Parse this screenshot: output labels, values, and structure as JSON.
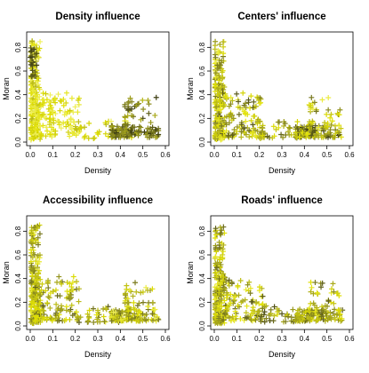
{
  "chart_data": [
    {
      "type": "scatter",
      "title": "Density influence",
      "xlabel": "Density",
      "ylabel": "Moran",
      "xlim": [
        0,
        0.6
      ],
      "ylim": [
        0,
        0.9
      ],
      "xticks": [
        0.0,
        0.1,
        0.2,
        0.3,
        0.4,
        0.5,
        0.6
      ],
      "yticks": [
        0.0,
        0.2,
        0.4,
        0.6,
        0.8
      ],
      "marker": "+",
      "grid": false,
      "legend": "none",
      "color_scale": [
        "#3a3a12",
        "#808020",
        "#b8b81a",
        "#e0e000",
        "#f0f060"
      ],
      "seed": 11,
      "clusters": [
        {
          "x": [
            0.003,
            0.045
          ],
          "y": [
            0.02,
            0.86
          ],
          "count": 170,
          "shade": [
            0.45,
            1.0
          ]
        },
        {
          "x": [
            0.02,
            0.22
          ],
          "y": [
            0.04,
            0.42
          ],
          "count": 140,
          "shade": [
            0.6,
            1.0
          ]
        },
        {
          "x": [
            0.2,
            0.45
          ],
          "y": [
            0.03,
            0.18
          ],
          "count": 45,
          "shade": [
            0.5,
            1.0
          ]
        },
        {
          "x": [
            0.36,
            0.57
          ],
          "y": [
            0.04,
            0.14
          ],
          "count": 120,
          "shade": [
            0.0,
            0.5
          ]
        },
        {
          "x": [
            0.42,
            0.56
          ],
          "y": [
            0.12,
            0.38
          ],
          "count": 40,
          "shade": [
            0.0,
            0.5
          ]
        },
        {
          "x": [
            0.0,
            0.03
          ],
          "y": [
            0.55,
            0.8
          ],
          "count": 25,
          "shade": [
            0.0,
            0.3
          ]
        }
      ]
    },
    {
      "type": "scatter",
      "title": "Centers' influence",
      "xlabel": "Density",
      "ylabel": "Moran",
      "xlim": [
        0,
        0.6
      ],
      "ylim": [
        0,
        0.9
      ],
      "xticks": [
        0.0,
        0.1,
        0.2,
        0.3,
        0.4,
        0.5,
        0.6
      ],
      "yticks": [
        0.0,
        0.2,
        0.4,
        0.6,
        0.8
      ],
      "marker": "+",
      "grid": false,
      "legend": "none",
      "color_scale": [
        "#3a3a12",
        "#808020",
        "#b8b81a",
        "#e0e000",
        "#f0f060"
      ],
      "seed": 23,
      "clusters": [
        {
          "x": [
            0.003,
            0.045
          ],
          "y": [
            0.02,
            0.86
          ],
          "count": 170,
          "shade": [
            0.2,
            1.0
          ]
        },
        {
          "x": [
            0.02,
            0.22
          ],
          "y": [
            0.04,
            0.42
          ],
          "count": 140,
          "shade": [
            0.1,
            0.9
          ]
        },
        {
          "x": [
            0.2,
            0.45
          ],
          "y": [
            0.03,
            0.18
          ],
          "count": 45,
          "shade": [
            0.1,
            0.8
          ]
        },
        {
          "x": [
            0.36,
            0.57
          ],
          "y": [
            0.04,
            0.14
          ],
          "count": 120,
          "shade": [
            0.0,
            0.8
          ]
        },
        {
          "x": [
            0.42,
            0.56
          ],
          "y": [
            0.12,
            0.38
          ],
          "count": 40,
          "shade": [
            0.2,
            1.0
          ]
        }
      ]
    },
    {
      "type": "scatter",
      "title": "Accessibility influence",
      "xlabel": "Density",
      "ylabel": "Moran",
      "xlim": [
        0,
        0.6
      ],
      "ylim": [
        0,
        0.9
      ],
      "xticks": [
        0.0,
        0.1,
        0.2,
        0.3,
        0.4,
        0.5,
        0.6
      ],
      "yticks": [
        0.0,
        0.2,
        0.4,
        0.6,
        0.8
      ],
      "marker": "+",
      "grid": false,
      "legend": "none",
      "color_scale": [
        "#3a3a12",
        "#808020",
        "#b8b81a",
        "#e0e000",
        "#f0f060"
      ],
      "seed": 37,
      "clusters": [
        {
          "x": [
            0.003,
            0.045
          ],
          "y": [
            0.02,
            0.86
          ],
          "count": 170,
          "shade": [
            0.2,
            0.9
          ]
        },
        {
          "x": [
            0.02,
            0.22
          ],
          "y": [
            0.04,
            0.42
          ],
          "count": 140,
          "shade": [
            0.1,
            0.8
          ]
        },
        {
          "x": [
            0.2,
            0.45
          ],
          "y": [
            0.03,
            0.18
          ],
          "count": 45,
          "shade": [
            0.1,
            0.9
          ]
        },
        {
          "x": [
            0.36,
            0.57
          ],
          "y": [
            0.04,
            0.14
          ],
          "count": 120,
          "shade": [
            0.2,
            1.0
          ]
        },
        {
          "x": [
            0.42,
            0.56
          ],
          "y": [
            0.12,
            0.38
          ],
          "count": 40,
          "shade": [
            0.2,
            1.0
          ]
        }
      ]
    },
    {
      "type": "scatter",
      "title": "Roads' influence",
      "xlabel": "Density",
      "ylabel": "Moran",
      "xlim": [
        0,
        0.6
      ],
      "ylim": [
        0,
        0.9
      ],
      "xticks": [
        0.0,
        0.1,
        0.2,
        0.3,
        0.4,
        0.5,
        0.6
      ],
      "yticks": [
        0.0,
        0.2,
        0.4,
        0.6,
        0.8
      ],
      "marker": "+",
      "grid": false,
      "legend": "none",
      "color_scale": [
        "#3a3a12",
        "#808020",
        "#b8b81a",
        "#e0e000",
        "#f0f060"
      ],
      "seed": 53,
      "clusters": [
        {
          "x": [
            0.003,
            0.045
          ],
          "y": [
            0.02,
            0.86
          ],
          "count": 170,
          "shade": [
            0.1,
            0.9
          ]
        },
        {
          "x": [
            0.02,
            0.22
          ],
          "y": [
            0.04,
            0.42
          ],
          "count": 140,
          "shade": [
            0.1,
            0.9
          ]
        },
        {
          "x": [
            0.2,
            0.45
          ],
          "y": [
            0.03,
            0.18
          ],
          "count": 45,
          "shade": [
            0.0,
            0.8
          ]
        },
        {
          "x": [
            0.36,
            0.57
          ],
          "y": [
            0.04,
            0.14
          ],
          "count": 120,
          "shade": [
            0.1,
            0.8
          ]
        },
        {
          "x": [
            0.42,
            0.56
          ],
          "y": [
            0.12,
            0.38
          ],
          "count": 40,
          "shade": [
            0.1,
            0.9
          ]
        }
      ]
    }
  ]
}
